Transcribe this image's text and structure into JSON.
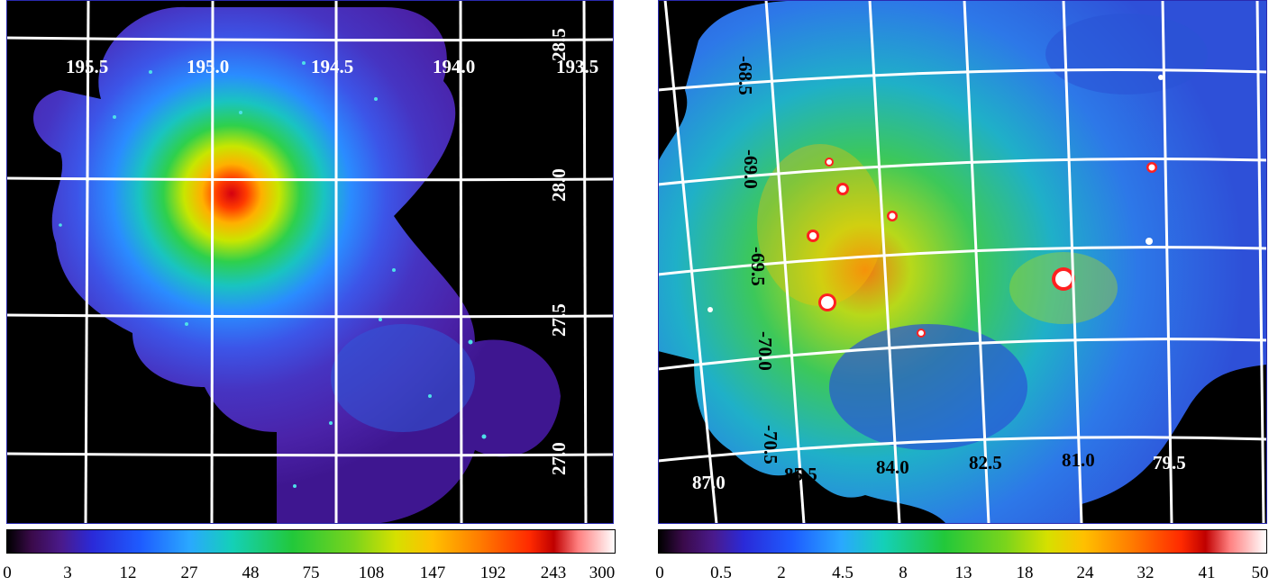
{
  "panels": [
    {
      "ra_labels": [
        "195.5",
        "195.0",
        "194.5",
        "194.0",
        "193.5"
      ],
      "dec_labels": [
        "28.5",
        "28.0",
        "27.5",
        "27.0"
      ],
      "colorbar_ticks": [
        "0",
        "3",
        "12",
        "27",
        "48",
        "75",
        "108",
        "147",
        "192",
        "243",
        "300"
      ]
    },
    {
      "ra_labels": [
        "87.0",
        "85.5",
        "84.0",
        "82.5",
        "81.0",
        "79.5"
      ],
      "dec_labels": [
        "-68.5",
        "-69.0",
        "-69.5",
        "-70.0",
        "-70.5"
      ],
      "colorbar_ticks": [
        "0",
        "0.5",
        "2",
        "4.5",
        "8",
        "13",
        "18",
        "24",
        "32",
        "41",
        "50"
      ]
    }
  ]
}
